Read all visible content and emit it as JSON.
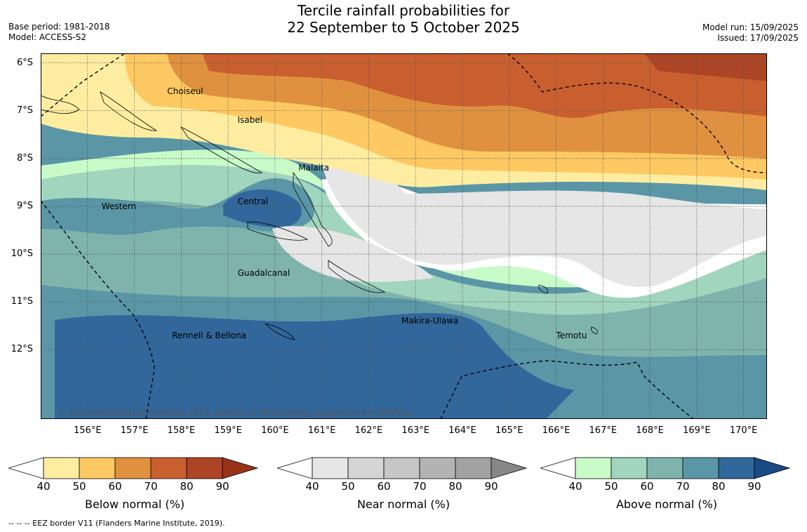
{
  "title": {
    "line1": "Tercile rainfall probabilities for",
    "line2": "22 September to 5 October 2025"
  },
  "meta_left": {
    "base_period": "Base period: 1981-2018",
    "model": "Model: ACCESS-S2"
  },
  "meta_right": {
    "model_run": "Model run: 15/09/2025",
    "issued": "Issued: 17/09/2025"
  },
  "map": {
    "lon_range": [
      155.0,
      170.5
    ],
    "lat_range": [
      -13.45,
      -5.8
    ],
    "lat_ticks": [
      {
        "value": -6,
        "label": "6°S"
      },
      {
        "value": -7,
        "label": "7°S"
      },
      {
        "value": -8,
        "label": "8°S"
      },
      {
        "value": -9,
        "label": "9°S"
      },
      {
        "value": -10,
        "label": "10°S"
      },
      {
        "value": -11,
        "label": "11°S"
      },
      {
        "value": -12,
        "label": "12°S"
      }
    ],
    "lon_ticks": [
      {
        "value": 156,
        "label": "156°E"
      },
      {
        "value": 157,
        "label": "157°E"
      },
      {
        "value": 158,
        "label": "158°E"
      },
      {
        "value": 159,
        "label": "159°E"
      },
      {
        "value": 160,
        "label": "160°E"
      },
      {
        "value": 161,
        "label": "161°E"
      },
      {
        "value": 162,
        "label": "162°E"
      },
      {
        "value": 163,
        "label": "163°E"
      },
      {
        "value": 164,
        "label": "164°E"
      },
      {
        "value": 165,
        "label": "165°E"
      },
      {
        "value": 166,
        "label": "166°E"
      },
      {
        "value": 167,
        "label": "167°E"
      },
      {
        "value": 168,
        "label": "168°E"
      },
      {
        "value": 169,
        "label": "169°E"
      },
      {
        "value": 170,
        "label": "170°E"
      }
    ],
    "places": [
      {
        "name": "Choiseul",
        "lon": 157.7,
        "lat": -6.6
      },
      {
        "name": "Isabel",
        "lon": 159.2,
        "lat": -7.2
      },
      {
        "name": "Malaita",
        "lon": 160.5,
        "lat": -8.2
      },
      {
        "name": "Western",
        "lon": 156.3,
        "lat": -9.0
      },
      {
        "name": "Central",
        "lon": 159.2,
        "lat": -8.9
      },
      {
        "name": "Guadalcanal",
        "lon": 159.2,
        "lat": -10.4
      },
      {
        "name": "Makira-Ulawa",
        "lon": 162.7,
        "lat": -11.4
      },
      {
        "name": "Rennell & Bellona",
        "lon": 157.8,
        "lat": -11.7
      },
      {
        "name": "Temotu",
        "lon": 166.0,
        "lat": -11.7
      }
    ],
    "copyright": "© Commonwealth of Australia 2025, Bureau of Meteorology, supported by COSPPac"
  },
  "colorbars": [
    {
      "label": "Below normal (%)",
      "colors": [
        "#ffffff",
        "#feeda1",
        "#fec962",
        "#e0913f",
        "#c95f2f",
        "#ac4525",
        "#993318"
      ],
      "ticks": [
        "40",
        "50",
        "60",
        "70",
        "80",
        "90"
      ]
    },
    {
      "label": "Near normal (%)",
      "colors": [
        "#ffffff",
        "#e6e6e6",
        "#d5d5d5",
        "#c6c6c6",
        "#b3b3b3",
        "#a2a2a2",
        "#878787"
      ],
      "ticks": [
        "40",
        "50",
        "60",
        "70",
        "80",
        "90"
      ]
    },
    {
      "label": "Above normal (%)",
      "colors": [
        "#ffffff",
        "#c9fbc9",
        "#a1d5bd",
        "#7fb4ad",
        "#5a96a6",
        "#32679c",
        "#1a4b85"
      ],
      "ticks": [
        "40",
        "50",
        "60",
        "70",
        "80",
        "90"
      ]
    }
  ],
  "footnote": "--  --  -- EEZ border V11 (Flanders Marine Institute, 2019)."
}
